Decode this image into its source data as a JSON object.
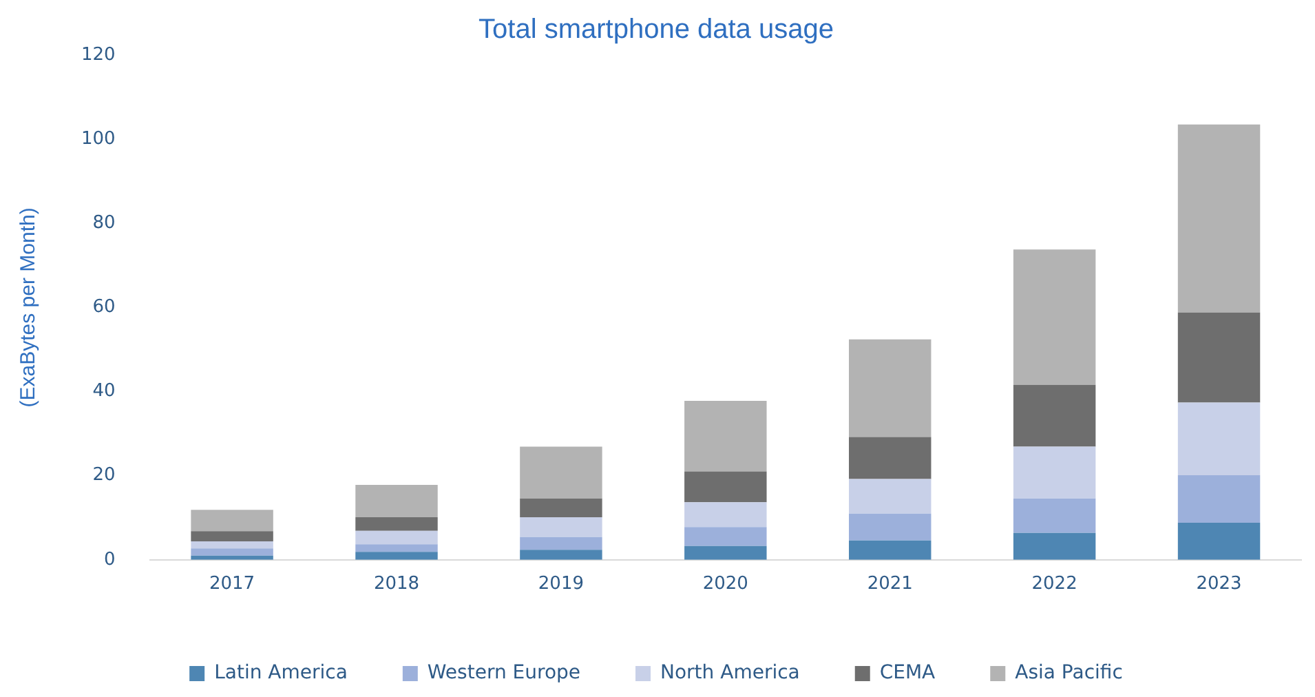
{
  "chart_data": {
    "type": "bar",
    "title": "Total smartphone data usage",
    "ylabel": "(ExaBytes per Month)",
    "categories": [
      "2017",
      "2018",
      "2019",
      "2020",
      "2021",
      "2022",
      "2023"
    ],
    "stacked": true,
    "ylim": [
      0,
      120
    ],
    "yticks": [
      0,
      20,
      40,
      60,
      80,
      100,
      120
    ],
    "grid": false,
    "legend": "bottom",
    "series": [
      {
        "name": "Latin America",
        "color": "#4e86b3",
        "values": [
          1.0,
          1.9,
          2.4,
          3.3,
          4.6,
          6.4,
          8.8
        ]
      },
      {
        "name": "Western Europe",
        "color": "#9cb0db",
        "values": [
          1.7,
          1.8,
          3.0,
          4.5,
          6.4,
          8.2,
          11.3
        ]
      },
      {
        "name": "North America",
        "color": "#c8d0e8",
        "values": [
          1.7,
          3.2,
          4.7,
          5.9,
          8.2,
          12.3,
          17.3
        ]
      },
      {
        "name": "CEMA",
        "color": "#6e6e6e",
        "values": [
          2.4,
          3.2,
          4.5,
          7.3,
          10.0,
          14.7,
          21.4
        ]
      },
      {
        "name": "Asia Pacific",
        "color": "#b3b3b3",
        "values": [
          5.1,
          7.7,
          12.3,
          16.8,
          23.2,
          32.2,
          44.7
        ]
      }
    ]
  }
}
